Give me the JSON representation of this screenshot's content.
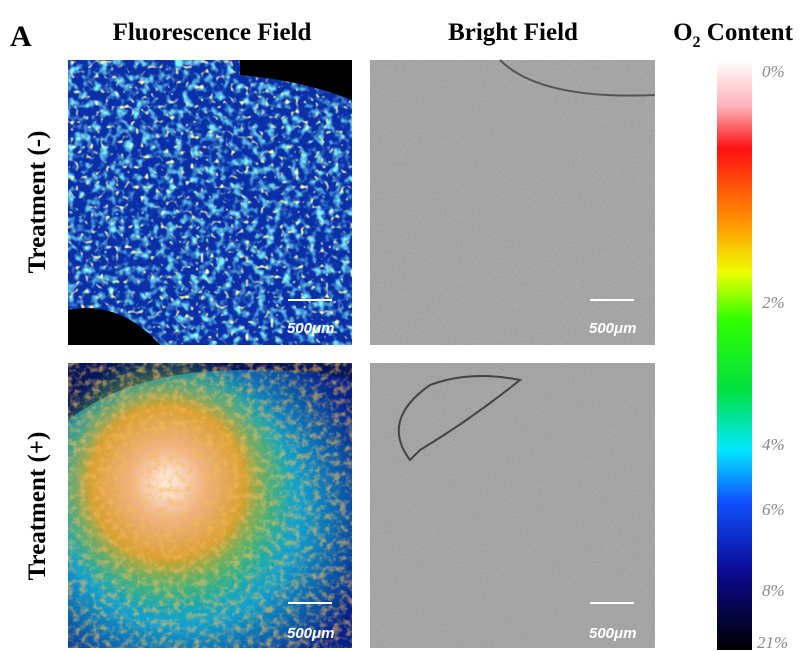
{
  "panel_label": "A",
  "columns": [
    "Fluorescence Field",
    "Bright Field"
  ],
  "legend": {
    "title": {
      "main": "O",
      "subscript": "2",
      "rest": " Content"
    },
    "labels": [
      "0%",
      "2%",
      "4%",
      "6%",
      "8%",
      "21%"
    ]
  },
  "rows": [
    {
      "label": "Treatment (-)",
      "scale_bars": [
        "500μm",
        "500μm"
      ]
    },
    {
      "label": "Treatment (+)",
      "scale_bars": [
        "500μm",
        "500μm"
      ]
    }
  ]
}
